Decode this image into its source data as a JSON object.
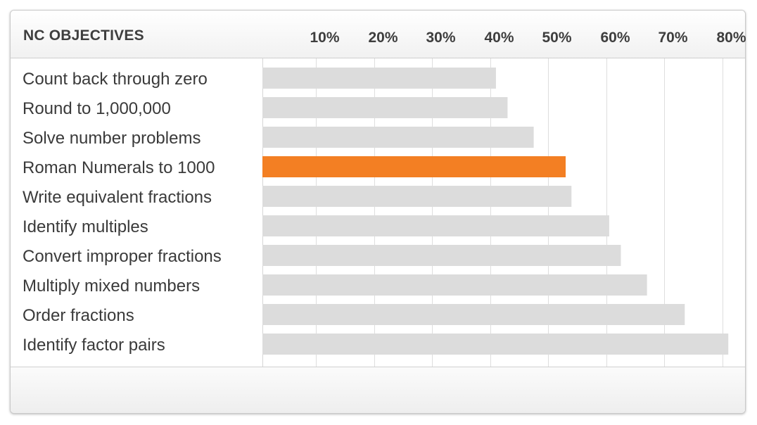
{
  "header": {
    "title": "NC OBJECTIVES"
  },
  "colors": {
    "bar": "#dcdcdc",
    "highlight": "#f37f23",
    "grid": "#dedede"
  },
  "chart_data": {
    "type": "bar",
    "orientation": "horizontal",
    "categories": [
      "Count back through zero",
      "Round to 1,000,000",
      "Solve number problems",
      "Roman Numerals to 1000",
      "Write equivalent fractions",
      "Identify multiples",
      "Convert improper fractions",
      "Multiply mixed numbers",
      "Order fractions",
      "Identify factor pairs"
    ],
    "values": [
      41,
      43,
      47.5,
      53,
      54,
      60.5,
      62.5,
      67,
      73.5,
      81
    ],
    "highlight": "Roman Numerals to 1000",
    "xlim": [
      0.8,
      84
    ],
    "xticks": [
      10,
      20,
      30,
      40,
      50,
      60,
      70,
      80
    ],
    "xtick_labels": [
      "10%",
      "20%",
      "30%",
      "40%",
      "50%",
      "60%",
      "70%",
      "80%"
    ],
    "title": "NC OBJECTIVES",
    "grid": true
  }
}
